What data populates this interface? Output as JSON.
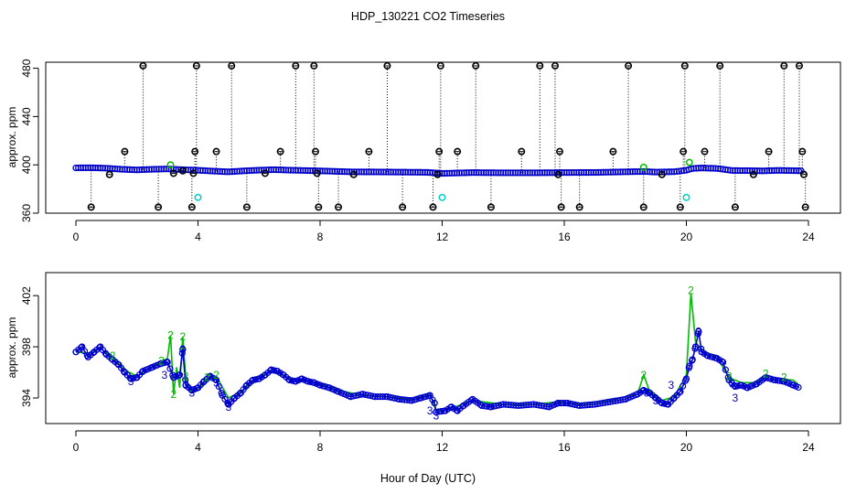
{
  "title": "HDP_130221  CO2 Timeseries",
  "xlabel": "Hour of Day (UTC)",
  "colors": {
    "axis": "#000000",
    "black_series": "#000000",
    "blue_series": "#0000cc",
    "green_series": "#00bb00",
    "cyan_series": "#00cccc"
  },
  "chart_data": [
    {
      "type": "scatter",
      "panel": "top",
      "title": "HDP_130221  CO2 Timeseries",
      "ylabel": "approx. ppm",
      "xlabel": "",
      "xlim": [
        0,
        24
      ],
      "ylim": [
        360,
        485
      ],
      "xticks": [
        0,
        4,
        8,
        12,
        16,
        20,
        24
      ],
      "yticks": [
        360,
        400,
        440,
        480
      ],
      "baseline": [
        [
          0.0,
          397.5
        ],
        [
          0.5,
          397.6
        ],
        [
          1.0,
          397.2
        ],
        [
          1.5,
          396.3
        ],
        [
          2.0,
          395.8
        ],
        [
          2.5,
          396.3
        ],
        [
          3.0,
          396.6
        ],
        [
          3.5,
          396.0
        ],
        [
          4.0,
          395.5
        ],
        [
          4.5,
          394.8
        ],
        [
          5.0,
          394.2
        ],
        [
          5.5,
          395.0
        ],
        [
          6.0,
          395.6
        ],
        [
          6.5,
          396.0
        ],
        [
          7.0,
          395.6
        ],
        [
          7.5,
          395.3
        ],
        [
          8.0,
          395.0
        ],
        [
          8.5,
          394.6
        ],
        [
          9.0,
          394.2
        ],
        [
          10.0,
          394.1
        ],
        [
          11.0,
          393.9
        ],
        [
          11.5,
          393.8
        ],
        [
          12.0,
          392.9
        ],
        [
          13.0,
          393.6
        ],
        [
          14.0,
          393.4
        ],
        [
          15.0,
          393.4
        ],
        [
          16.0,
          393.6
        ],
        [
          17.0,
          393.7
        ],
        [
          18.0,
          394.2
        ],
        [
          18.6,
          394.5
        ],
        [
          19.0,
          394.0
        ],
        [
          19.6,
          394.3
        ],
        [
          20.0,
          395.5
        ],
        [
          20.2,
          397.0
        ],
        [
          20.5,
          397.4
        ],
        [
          21.0,
          397.0
        ],
        [
          21.5,
          395.3
        ],
        [
          22.0,
          395.2
        ],
        [
          22.5,
          395.0
        ],
        [
          23.0,
          395.4
        ],
        [
          23.5,
          395.2
        ],
        [
          23.8,
          395.0
        ]
      ],
      "black_spikes": [
        {
          "x": 0.5,
          "y": 365
        },
        {
          "x": 1.1,
          "y": 392
        },
        {
          "x": 1.6,
          "y": 411
        },
        {
          "x": 2.2,
          "y": 482
        },
        {
          "x": 2.7,
          "y": 365
        },
        {
          "x": 3.2,
          "y": 393
        },
        {
          "x": 3.5,
          "y": 395
        },
        {
          "x": 3.8,
          "y": 365
        },
        {
          "x": 3.9,
          "y": 411
        },
        {
          "x": 3.95,
          "y": 482
        },
        {
          "x": 3.85,
          "y": 393
        },
        {
          "x": 4.6,
          "y": 411
        },
        {
          "x": 5.1,
          "y": 482
        },
        {
          "x": 5.6,
          "y": 365
        },
        {
          "x": 6.2,
          "y": 393
        },
        {
          "x": 6.7,
          "y": 411
        },
        {
          "x": 7.2,
          "y": 482
        },
        {
          "x": 7.8,
          "y": 482
        },
        {
          "x": 7.85,
          "y": 411
        },
        {
          "x": 7.9,
          "y": 393
        },
        {
          "x": 7.95,
          "y": 365
        },
        {
          "x": 8.6,
          "y": 365
        },
        {
          "x": 9.1,
          "y": 392
        },
        {
          "x": 9.6,
          "y": 411
        },
        {
          "x": 10.2,
          "y": 482
        },
        {
          "x": 10.7,
          "y": 365
        },
        {
          "x": 11.7,
          "y": 365
        },
        {
          "x": 11.85,
          "y": 392
        },
        {
          "x": 11.9,
          "y": 411
        },
        {
          "x": 11.95,
          "y": 482
        },
        {
          "x": 12.5,
          "y": 411
        },
        {
          "x": 13.1,
          "y": 482
        },
        {
          "x": 13.6,
          "y": 365
        },
        {
          "x": 14.6,
          "y": 411
        },
        {
          "x": 15.2,
          "y": 482
        },
        {
          "x": 15.7,
          "y": 482
        },
        {
          "x": 15.8,
          "y": 392
        },
        {
          "x": 15.9,
          "y": 365
        },
        {
          "x": 15.85,
          "y": 411
        },
        {
          "x": 16.5,
          "y": 365
        },
        {
          "x": 17.6,
          "y": 411
        },
        {
          "x": 18.1,
          "y": 482
        },
        {
          "x": 18.6,
          "y": 365
        },
        {
          "x": 19.2,
          "y": 392
        },
        {
          "x": 19.8,
          "y": 365
        },
        {
          "x": 19.9,
          "y": 411
        },
        {
          "x": 19.95,
          "y": 482
        },
        {
          "x": 20.6,
          "y": 411
        },
        {
          "x": 21.1,
          "y": 482
        },
        {
          "x": 21.6,
          "y": 365
        },
        {
          "x": 22.2,
          "y": 392
        },
        {
          "x": 22.7,
          "y": 411
        },
        {
          "x": 23.2,
          "y": 482
        },
        {
          "x": 23.7,
          "y": 482
        },
        {
          "x": 23.8,
          "y": 411
        },
        {
          "x": 23.85,
          "y": 392
        },
        {
          "x": 23.9,
          "y": 365
        }
      ],
      "green_points": [
        {
          "x": 3.1,
          "y": 400
        },
        {
          "x": 18.6,
          "y": 398
        },
        {
          "x": 20.1,
          "y": 402
        }
      ],
      "cyan_points": [
        {
          "x": 4.0,
          "y": 373
        },
        {
          "x": 12.0,
          "y": 373
        },
        {
          "x": 20.0,
          "y": 373
        }
      ]
    },
    {
      "type": "line",
      "panel": "bottom",
      "title": "",
      "ylabel": "approx. ppm",
      "xlabel": "Hour of Day (UTC)",
      "xlim": [
        0,
        24
      ],
      "ylim": [
        392.0,
        403.8
      ],
      "xticks": [
        0,
        4,
        8,
        12,
        16,
        20,
        24
      ],
      "yticks": [
        394,
        398,
        402
      ],
      "blue_series": [
        [
          0.0,
          397.6
        ],
        [
          0.2,
          398.0
        ],
        [
          0.4,
          397.2
        ],
        [
          0.6,
          397.6
        ],
        [
          0.8,
          398.0
        ],
        [
          1.0,
          397.4
        ],
        [
          1.2,
          397.0
        ],
        [
          1.4,
          396.6
        ],
        [
          1.6,
          396.0
        ],
        [
          1.8,
          395.5
        ],
        [
          2.0,
          395.6
        ],
        [
          2.2,
          396.1
        ],
        [
          2.5,
          396.4
        ],
        [
          2.8,
          396.7
        ],
        [
          3.0,
          396.8
        ],
        [
          3.2,
          395.6
        ],
        [
          3.4,
          395.8
        ],
        [
          3.5,
          397.8
        ],
        [
          3.6,
          395.0
        ],
        [
          3.8,
          394.6
        ],
        [
          4.0,
          394.8
        ],
        [
          4.2,
          395.3
        ],
        [
          4.4,
          395.7
        ],
        [
          4.6,
          395.4
        ],
        [
          4.8,
          394.2
        ],
        [
          5.0,
          393.5
        ],
        [
          5.2,
          394.0
        ],
        [
          5.4,
          394.4
        ],
        [
          5.6,
          395.0
        ],
        [
          5.8,
          395.4
        ],
        [
          6.0,
          395.5
        ],
        [
          6.2,
          395.8
        ],
        [
          6.4,
          396.2
        ],
        [
          6.6,
          396.1
        ],
        [
          6.8,
          395.8
        ],
        [
          7.0,
          395.4
        ],
        [
          7.2,
          395.3
        ],
        [
          7.4,
          395.5
        ],
        [
          7.6,
          395.3
        ],
        [
          7.8,
          395.2
        ],
        [
          8.0,
          395.0
        ],
        [
          8.3,
          394.8
        ],
        [
          8.6,
          394.5
        ],
        [
          9.0,
          394.1
        ],
        [
          9.4,
          394.3
        ],
        [
          9.8,
          394.1
        ],
        [
          10.2,
          394.1
        ],
        [
          10.6,
          393.9
        ],
        [
          11.0,
          393.8
        ],
        [
          11.3,
          394.0
        ],
        [
          11.6,
          394.2
        ],
        [
          11.75,
          393.6
        ],
        [
          11.8,
          392.9
        ],
        [
          12.1,
          393.0
        ],
        [
          12.3,
          393.3
        ],
        [
          12.5,
          393.0
        ],
        [
          12.7,
          393.4
        ],
        [
          13.0,
          393.9
        ],
        [
          13.3,
          393.4
        ],
        [
          13.6,
          393.3
        ],
        [
          14.0,
          393.5
        ],
        [
          14.5,
          393.4
        ],
        [
          15.0,
          393.5
        ],
        [
          15.5,
          393.3
        ],
        [
          15.8,
          393.6
        ],
        [
          16.1,
          393.6
        ],
        [
          16.5,
          393.4
        ],
        [
          17.0,
          393.5
        ],
        [
          17.5,
          393.7
        ],
        [
          18.0,
          393.9
        ],
        [
          18.4,
          394.3
        ],
        [
          18.6,
          394.6
        ],
        [
          18.8,
          394.4
        ],
        [
          19.0,
          394.0
        ],
        [
          19.2,
          393.6
        ],
        [
          19.4,
          393.5
        ],
        [
          19.6,
          394.0
        ],
        [
          19.8,
          394.5
        ],
        [
          20.0,
          395.5
        ],
        [
          20.1,
          396.5
        ],
        [
          20.2,
          397.0
        ],
        [
          20.3,
          398.0
        ],
        [
          20.4,
          399.2
        ],
        [
          20.5,
          397.6
        ],
        [
          20.7,
          397.3
        ],
        [
          21.0,
          397.1
        ],
        [
          21.2,
          396.8
        ],
        [
          21.4,
          395.4
        ],
        [
          21.6,
          394.9
        ],
        [
          21.8,
          395.0
        ],
        [
          22.0,
          394.8
        ],
        [
          22.3,
          395.1
        ],
        [
          22.6,
          395.6
        ],
        [
          22.9,
          395.4
        ],
        [
          23.2,
          395.3
        ],
        [
          23.5,
          395.0
        ],
        [
          23.7,
          394.8
        ]
      ],
      "green_series": [
        [
          0.0,
          397.6
        ],
        [
          0.4,
          397.5
        ],
        [
          0.8,
          397.9
        ],
        [
          1.2,
          397.2
        ],
        [
          1.6,
          396.2
        ],
        [
          2.0,
          395.7
        ],
        [
          2.5,
          396.5
        ],
        [
          2.8,
          396.8
        ],
        [
          3.0,
          397.1
        ],
        [
          3.1,
          398.9
        ],
        [
          3.2,
          394.3
        ],
        [
          3.3,
          396.4
        ],
        [
          3.4,
          394.8
        ],
        [
          3.5,
          398.8
        ],
        [
          3.6,
          395.6
        ],
        [
          3.8,
          394.4
        ],
        [
          4.0,
          394.6
        ],
        [
          4.3,
          395.5
        ],
        [
          4.6,
          395.7
        ],
        [
          5.0,
          394.0
        ],
        [
          5.5,
          394.6
        ],
        [
          6.0,
          395.7
        ],
        [
          6.5,
          396.1
        ],
        [
          7.0,
          395.5
        ],
        [
          7.5,
          395.4
        ],
        [
          8.0,
          395.1
        ],
        [
          8.6,
          394.6
        ],
        [
          9.4,
          394.2
        ],
        [
          10.2,
          394.1
        ],
        [
          11.0,
          393.9
        ],
        [
          11.6,
          394.3
        ],
        [
          11.8,
          393.0
        ],
        [
          12.3,
          393.2
        ],
        [
          13.0,
          393.8
        ],
        [
          14.0,
          393.5
        ],
        [
          15.0,
          393.5
        ],
        [
          15.8,
          393.7
        ],
        [
          16.5,
          393.5
        ],
        [
          17.5,
          393.8
        ],
        [
          18.4,
          394.3
        ],
        [
          18.6,
          395.8
        ],
        [
          18.8,
          394.5
        ],
        [
          19.2,
          393.8
        ],
        [
          19.6,
          394.1
        ],
        [
          20.0,
          395.8
        ],
        [
          20.15,
          402.2
        ],
        [
          20.3,
          398.4
        ],
        [
          20.5,
          397.7
        ],
        [
          21.0,
          397.2
        ],
        [
          21.4,
          395.6
        ],
        [
          21.8,
          395.2
        ],
        [
          22.3,
          395.2
        ],
        [
          22.6,
          395.8
        ],
        [
          23.0,
          395.5
        ],
        [
          23.5,
          395.4
        ],
        [
          23.7,
          395.0
        ]
      ],
      "labels_2": [
        {
          "x": 3.1,
          "y": 398.9
        },
        {
          "x": 3.5,
          "y": 398.8
        },
        {
          "x": 3.2,
          "y": 394.3
        },
        {
          "x": 2.8,
          "y": 396.9
        },
        {
          "x": 3.6,
          "y": 395.7
        },
        {
          "x": 4.3,
          "y": 395.6
        },
        {
          "x": 4.6,
          "y": 395.8
        },
        {
          "x": 18.6,
          "y": 395.8
        },
        {
          "x": 20.15,
          "y": 402.4
        },
        {
          "x": 21.4,
          "y": 395.7
        },
        {
          "x": 22.6,
          "y": 395.9
        },
        {
          "x": 23.2,
          "y": 395.6
        },
        {
          "x": 1.2,
          "y": 397.3
        }
      ],
      "labels_3": [
        {
          "x": 3.5,
          "y": 397.8
        },
        {
          "x": 3.6,
          "y": 395.0
        },
        {
          "x": 1.8,
          "y": 395.3
        },
        {
          "x": 4.6,
          "y": 395.2
        },
        {
          "x": 5.0,
          "y": 393.3
        },
        {
          "x": 11.6,
          "y": 393.0
        },
        {
          "x": 11.8,
          "y": 392.6
        },
        {
          "x": 18.7,
          "y": 394.4
        },
        {
          "x": 19.0,
          "y": 393.8
        },
        {
          "x": 19.5,
          "y": 395.0
        },
        {
          "x": 20.4,
          "y": 399.2
        },
        {
          "x": 21.5,
          "y": 395.1
        },
        {
          "x": 21.6,
          "y": 394.0
        },
        {
          "x": 3.8,
          "y": 394.4
        },
        {
          "x": 2.9,
          "y": 395.8
        }
      ]
    }
  ]
}
